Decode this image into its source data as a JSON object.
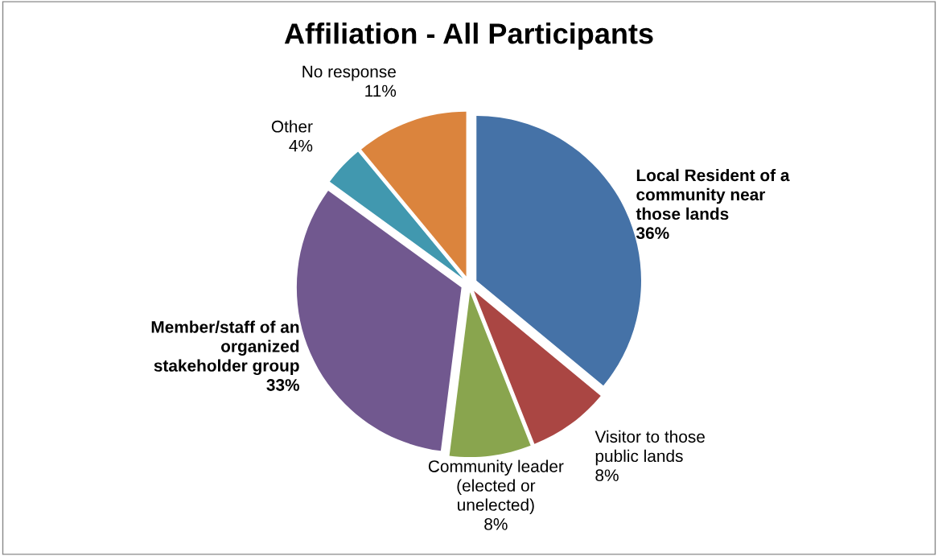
{
  "chart_data": {
    "type": "pie",
    "title": "Affiliation - All Participants",
    "categories": [
      "Local Resident of a community near those lands",
      "Visitor to those public lands",
      "Community leader (elected or unelected)",
      "Member/staff of an organized stakeholder group",
      "Other",
      "No response"
    ],
    "values": [
      36,
      8,
      8,
      33,
      4,
      11
    ],
    "value_labels": [
      "36%",
      "8%",
      "8%",
      "33%",
      "4%",
      "11%"
    ],
    "colors": [
      "#4572a7",
      "#aa4643",
      "#89a54e",
      "#71588f",
      "#4198af",
      "#db843d"
    ],
    "legend": false
  }
}
